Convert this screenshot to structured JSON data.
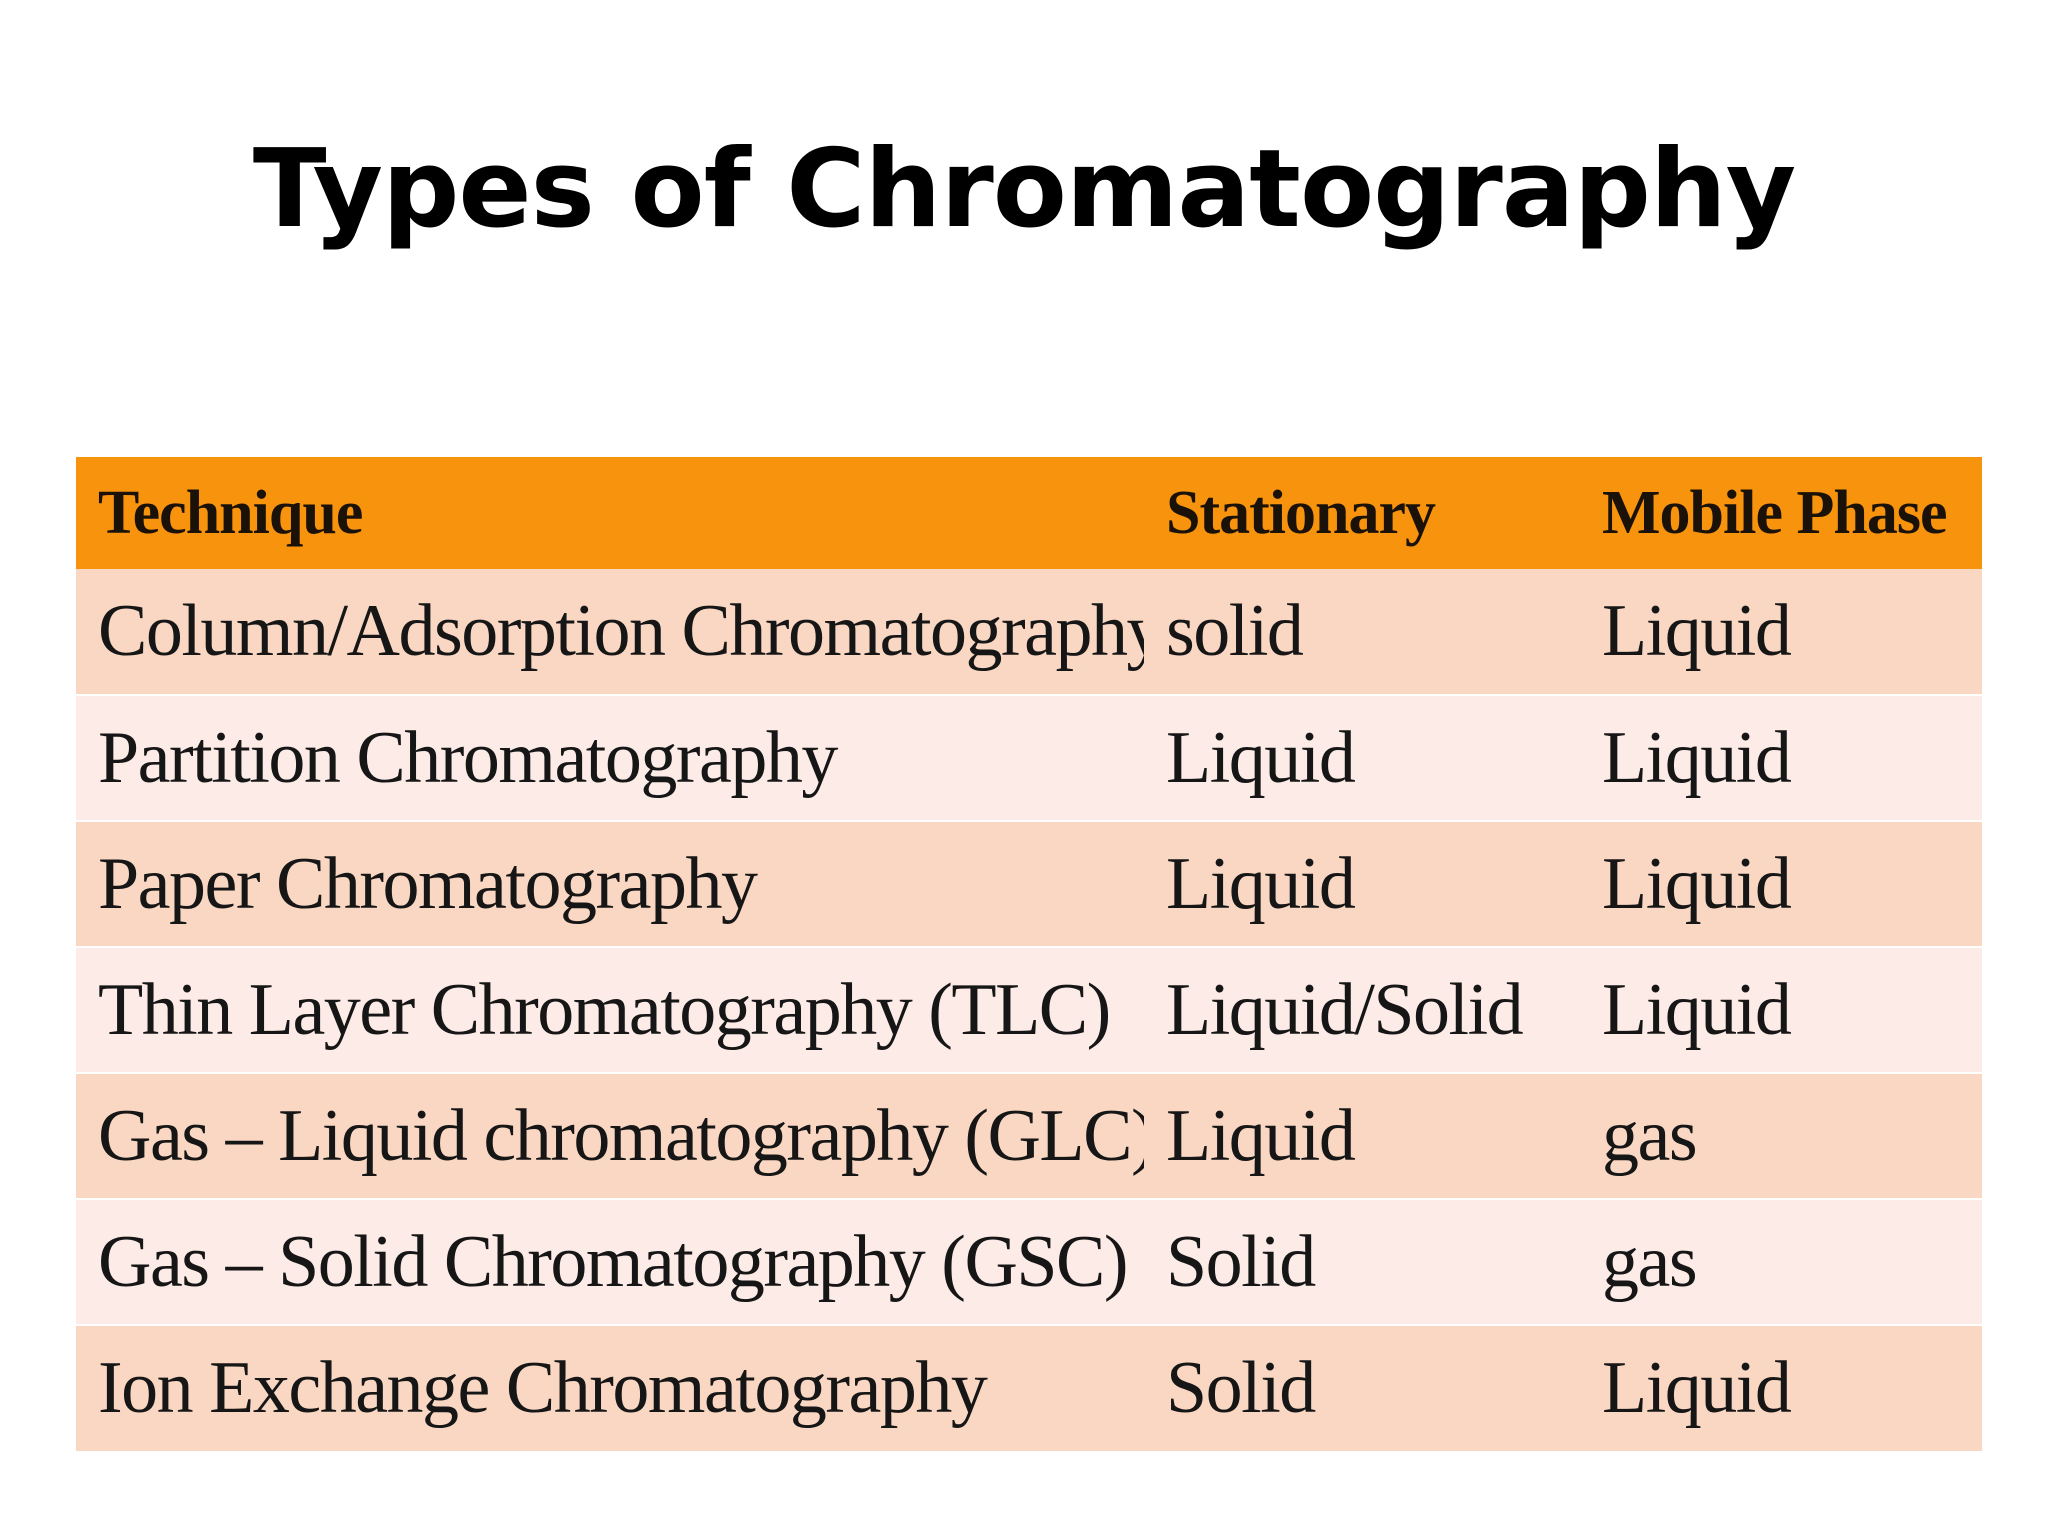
{
  "title": "Types of Chromatography",
  "table": {
    "headers": [
      "Technique",
      "Stationary",
      "Mobile Phase"
    ],
    "rows": [
      [
        "Column/Adsorption Chromatography",
        "solid",
        "Liquid"
      ],
      [
        "Partition Chromatography",
        "Liquid",
        "Liquid"
      ],
      [
        "Paper Chromatography",
        "Liquid",
        "Liquid"
      ],
      [
        "Thin Layer Chromatography (TLC)",
        "Liquid/Solid",
        "Liquid"
      ],
      [
        "Gas – Liquid chromatography (GLC)",
        "Liquid",
        "gas"
      ],
      [
        "Gas – Solid Chromatography (GSC)",
        "Solid",
        "gas"
      ],
      [
        "Ion Exchange Chromatography",
        "Solid",
        "Liquid"
      ]
    ]
  },
  "colors": {
    "header_bg": "#f8930d",
    "row_odd_bg": "#f9d7c3",
    "row_even_bg": "#fcebe6"
  }
}
